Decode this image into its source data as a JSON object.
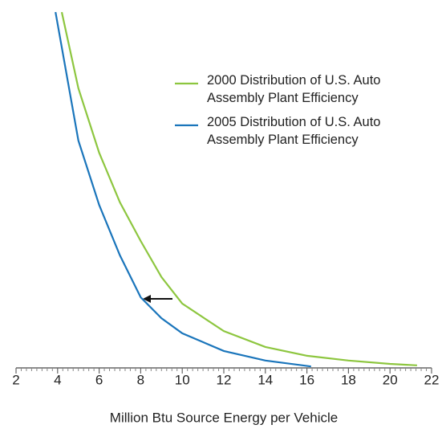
{
  "chart_data": {
    "type": "line",
    "x_label": "Million Btu Source Energy per Vehicle",
    "xlim": [
      2,
      22
    ],
    "xticks": [
      2,
      4,
      6,
      8,
      10,
      12,
      14,
      16,
      18,
      20,
      22
    ],
    "ylim": [
      0,
      100
    ],
    "legend": "upper right",
    "series": [
      {
        "name": "2000 Distribution of U.S. Auto Assembly Plant Efficiency",
        "color": "#8dc63f",
        "x": [
          4.2,
          5,
          6,
          7,
          8,
          9,
          10,
          12,
          14,
          16,
          18,
          20,
          21.3
        ],
        "values": [
          96.7,
          76,
          58.5,
          45,
          34.5,
          24.7,
          17.5,
          10,
          5.7,
          3.3,
          2,
          1.1,
          0.7
        ]
      },
      {
        "name": "2005 Distribution of U.S. Auto Assembly Plant Efficiency",
        "color": "#1a75bb",
        "x": [
          3.9,
          5,
          6,
          7,
          8,
          9,
          10,
          12,
          14,
          16.2
        ],
        "values": [
          96.7,
          61.8,
          44.3,
          30.6,
          19.2,
          13.5,
          9.4,
          4.6,
          2,
          0.4
        ]
      }
    ]
  }
}
